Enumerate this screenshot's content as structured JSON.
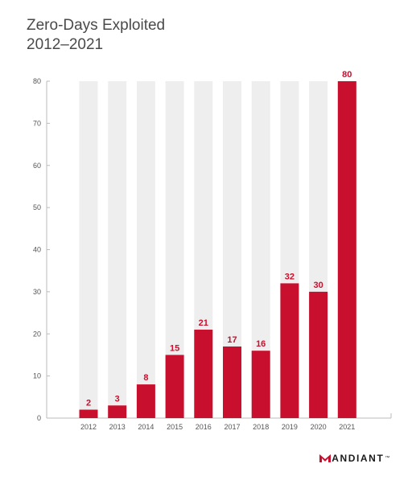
{
  "title_line1": "Zero-Days Exploited",
  "title_line2": "2012–2021",
  "brand": {
    "rest": "ANDIANT",
    "tm": "™"
  },
  "colors": {
    "bar": "#c8102e",
    "track": "#eeeeee",
    "axis": "#bbbbbb",
    "text": "#555555"
  },
  "chart_data": {
    "type": "bar",
    "title": "Zero-Days Exploited 2012–2021",
    "categories": [
      "2012",
      "2013",
      "2014",
      "2015",
      "2016",
      "2017",
      "2018",
      "2019",
      "2020",
      "2021"
    ],
    "values": [
      2,
      3,
      8,
      15,
      21,
      17,
      16,
      32,
      30,
      80
    ],
    "xlabel": "",
    "ylabel": "",
    "ylim": [
      0,
      80
    ],
    "yticks": [
      0,
      10,
      20,
      30,
      40,
      50,
      60,
      70,
      80
    ],
    "grid": false,
    "legend": "none"
  }
}
